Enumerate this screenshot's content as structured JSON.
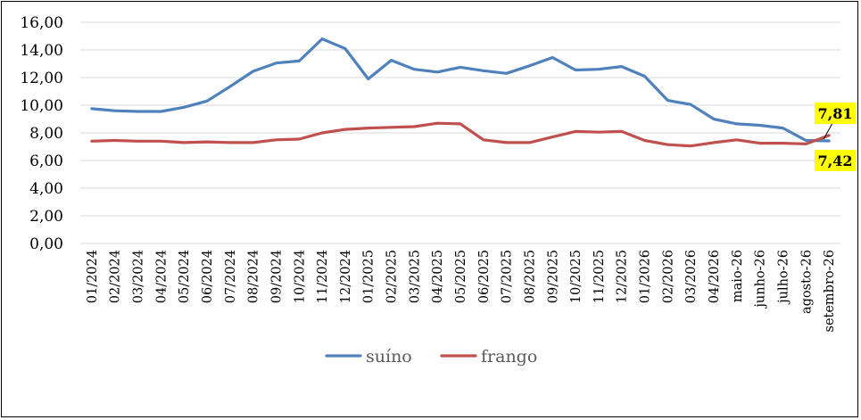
{
  "chart_data": {
    "type": "line",
    "title": "",
    "xlabel": "",
    "ylabel": "",
    "ylim": [
      0,
      16
    ],
    "y_ticks": [
      "0,00",
      "2,00",
      "4,00",
      "6,00",
      "8,00",
      "10,00",
      "12,00",
      "14,00",
      "16,00"
    ],
    "grid": "horizontal",
    "legend_position": "bottom",
    "categories": [
      "01/2024",
      "02/2024",
      "03/2024",
      "04/2024",
      "05/2024",
      "06/2024",
      "07/2024",
      "08/2024",
      "09/2024",
      "10/2024",
      "11/2024",
      "12/2024",
      "01/2025",
      "02/2025",
      "03/2025",
      "04/2025",
      "05/2025",
      "06/2025",
      "07/2025",
      "08/2025",
      "09/2025",
      "10/2025",
      "11/2025",
      "12/2025",
      "01/2026",
      "02/2026",
      "03/2026",
      "04/2026",
      "maio-26",
      "junho-26",
      "julho-26",
      "agosto-26",
      "setembro-26"
    ],
    "series": [
      {
        "name": "suíno",
        "color": "#4F81BD",
        "values": [
          9.75,
          9.6,
          9.55,
          9.55,
          9.85,
          10.3,
          11.35,
          12.45,
          13.05,
          13.2,
          14.8,
          14.1,
          11.9,
          13.25,
          12.6,
          12.4,
          12.75,
          12.5,
          12.3,
          12.85,
          13.45,
          12.55,
          12.6,
          12.8,
          12.1,
          10.35,
          10.05,
          9.0,
          8.65,
          8.55,
          8.35,
          7.45,
          7.42
        ]
      },
      {
        "name": "frango",
        "color": "#C0504D",
        "values": [
          7.4,
          7.45,
          7.4,
          7.4,
          7.3,
          7.35,
          7.3,
          7.3,
          7.5,
          7.55,
          8.0,
          8.25,
          8.35,
          8.4,
          8.45,
          8.7,
          8.65,
          7.5,
          7.3,
          7.3,
          7.7,
          8.1,
          8.05,
          8.1,
          7.45,
          7.15,
          7.05,
          7.3,
          7.5,
          7.25,
          7.25,
          7.2,
          7.81
        ]
      }
    ],
    "annotations": [
      {
        "text": "7,81",
        "series": "frango",
        "point": "setembro-26",
        "background": "#FFFF00"
      },
      {
        "text": "7,42",
        "series": "suíno",
        "point": "setembro-26",
        "background": "#FFFF00"
      }
    ]
  }
}
